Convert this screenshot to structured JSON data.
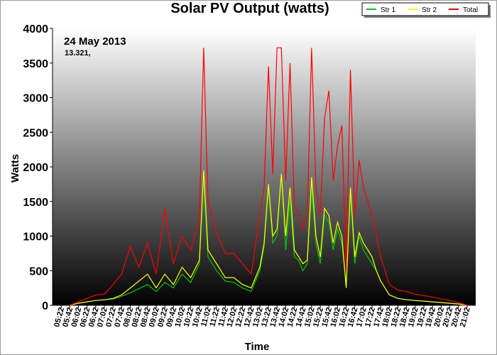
{
  "chart_data": {
    "type": "line",
    "title": "Solar PV Output (watts)",
    "xlabel": "Time",
    "ylabel": "Watts",
    "date_label": "24 May 2013",
    "total_label": "13.321,",
    "ylim": [
      0,
      4000
    ],
    "y_ticks": [
      0,
      500,
      1000,
      1500,
      2000,
      2500,
      3000,
      3500,
      4000
    ],
    "x_tick_labels": [
      "05:22",
      "05:42",
      "06:02",
      "06:22",
      "06:42",
      "07:02",
      "07:22",
      "07:42",
      "08:02",
      "08:22",
      "08:42",
      "09:02",
      "09:22",
      "09:42",
      "10:02",
      "10:22",
      "10:42",
      "11:02",
      "11:22",
      "11:42",
      "12:02",
      "12:22",
      "12:42",
      "13:02",
      "13:22",
      "13:42",
      "14:02",
      "14:22",
      "14:42",
      "15:02",
      "15:22",
      "15:42",
      "16:02",
      "16:22",
      "16:42",
      "17:02",
      "17:22",
      "17:42",
      "18:02",
      "18:22",
      "18:42",
      "19:02",
      "19:22",
      "19:42",
      "20:02",
      "20:22",
      "20:42",
      "21:02"
    ],
    "legend_position": "top-right",
    "grid": false,
    "series": [
      {
        "name": "Str 1",
        "color": "#00cc00",
        "x": [
          "05:42",
          "06:02",
          "06:22",
          "06:42",
          "07:02",
          "07:22",
          "07:42",
          "08:02",
          "08:22",
          "08:42",
          "09:02",
          "09:22",
          "09:42",
          "10:02",
          "10:22",
          "10:42",
          "10:52",
          "11:02",
          "11:22",
          "11:42",
          "12:02",
          "12:22",
          "12:42",
          "13:02",
          "13:12",
          "13:22",
          "13:32",
          "13:42",
          "13:52",
          "14:02",
          "14:12",
          "14:22",
          "14:32",
          "14:42",
          "14:52",
          "15:02",
          "15:12",
          "15:22",
          "15:32",
          "15:42",
          "15:52",
          "16:02",
          "16:12",
          "16:22",
          "16:32",
          "16:42",
          "16:52",
          "17:02",
          "17:12",
          "17:22",
          "17:32",
          "17:42",
          "18:02",
          "18:22",
          "18:42",
          "19:02",
          "19:22",
          "19:42",
          "20:02",
          "20:22",
          "20:42",
          "21:02"
        ],
        "y": [
          0,
          30,
          50,
          70,
          80,
          90,
          130,
          180,
          240,
          300,
          200,
          330,
          250,
          450,
          330,
          600,
          1850,
          700,
          500,
          350,
          330,
          250,
          200,
          500,
          850,
          1700,
          900,
          1000,
          1900,
          800,
          1500,
          700,
          650,
          500,
          600,
          1700,
          900,
          600,
          1300,
          1200,
          800,
          1100,
          900,
          300,
          1600,
          600,
          1000,
          800,
          700,
          600,
          500,
          350,
          150,
          100,
          80,
          70,
          60,
          50,
          40,
          30,
          20,
          0
        ]
      },
      {
        "name": "Str 2",
        "color": "#ffff00",
        "x": [
          "05:42",
          "06:02",
          "06:22",
          "06:42",
          "07:02",
          "07:22",
          "07:42",
          "08:02",
          "08:22",
          "08:42",
          "09:02",
          "09:22",
          "09:42",
          "10:02",
          "10:22",
          "10:42",
          "10:52",
          "11:02",
          "11:22",
          "11:42",
          "12:02",
          "12:22",
          "12:42",
          "13:02",
          "13:12",
          "13:22",
          "13:32",
          "13:42",
          "13:52",
          "14:02",
          "14:12",
          "14:22",
          "14:32",
          "14:42",
          "14:52",
          "15:02",
          "15:12",
          "15:22",
          "15:32",
          "15:42",
          "15:52",
          "16:02",
          "16:12",
          "16:22",
          "16:32",
          "16:42",
          "16:52",
          "17:02",
          "17:12",
          "17:22",
          "17:32",
          "17:42",
          "18:02",
          "18:22",
          "18:42",
          "19:02",
          "19:22",
          "19:42",
          "20:02",
          "20:22",
          "20:42",
          "21:02"
        ],
        "y": [
          0,
          30,
          50,
          70,
          80,
          100,
          150,
          250,
          350,
          450,
          250,
          450,
          300,
          550,
          400,
          650,
          1950,
          800,
          600,
          400,
          400,
          300,
          250,
          550,
          900,
          1750,
          1000,
          1100,
          1900,
          1000,
          1700,
          800,
          700,
          600,
          650,
          1850,
          1000,
          700,
          1400,
          1300,
          900,
          1200,
          1000,
          250,
          1700,
          700,
          1050,
          900,
          800,
          700,
          500,
          350,
          150,
          100,
          80,
          70,
          60,
          50,
          40,
          30,
          20,
          0
        ]
      },
      {
        "name": "Total",
        "color": "#ff0000",
        "x": [
          "05:42",
          "06:02",
          "06:22",
          "06:42",
          "07:02",
          "07:22",
          "07:42",
          "08:02",
          "08:22",
          "08:42",
          "09:02",
          "09:22",
          "09:42",
          "10:02",
          "10:22",
          "10:42",
          "10:52",
          "11:02",
          "11:22",
          "11:42",
          "12:02",
          "12:22",
          "12:42",
          "13:02",
          "13:12",
          "13:22",
          "13:32",
          "13:42",
          "13:52",
          "14:02",
          "14:12",
          "14:22",
          "14:32",
          "14:42",
          "14:52",
          "15:02",
          "15:12",
          "15:22",
          "15:32",
          "15:42",
          "15:52",
          "16:02",
          "16:12",
          "16:22",
          "16:32",
          "16:42",
          "16:52",
          "17:02",
          "17:12",
          "17:22",
          "17:32",
          "17:42",
          "18:02",
          "18:22",
          "18:42",
          "19:02",
          "19:22",
          "19:42",
          "20:02",
          "20:22",
          "20:42",
          "21:02"
        ],
        "y": [
          0,
          50,
          100,
          150,
          160,
          300,
          450,
          850,
          550,
          900,
          450,
          1400,
          600,
          1000,
          800,
          1250,
          3720,
          1500,
          1050,
          750,
          750,
          600,
          450,
          1300,
          1700,
          3450,
          1900,
          3720,
          3720,
          1800,
          3500,
          1400,
          1350,
          1100,
          1300,
          3720,
          1700,
          1300,
          2700,
          3100,
          1800,
          2300,
          2600,
          500,
          3400,
          1300,
          2100,
          1700,
          1500,
          1300,
          1000,
          700,
          300,
          220,
          200,
          160,
          140,
          120,
          90,
          70,
          40,
          0
        ]
      }
    ]
  }
}
